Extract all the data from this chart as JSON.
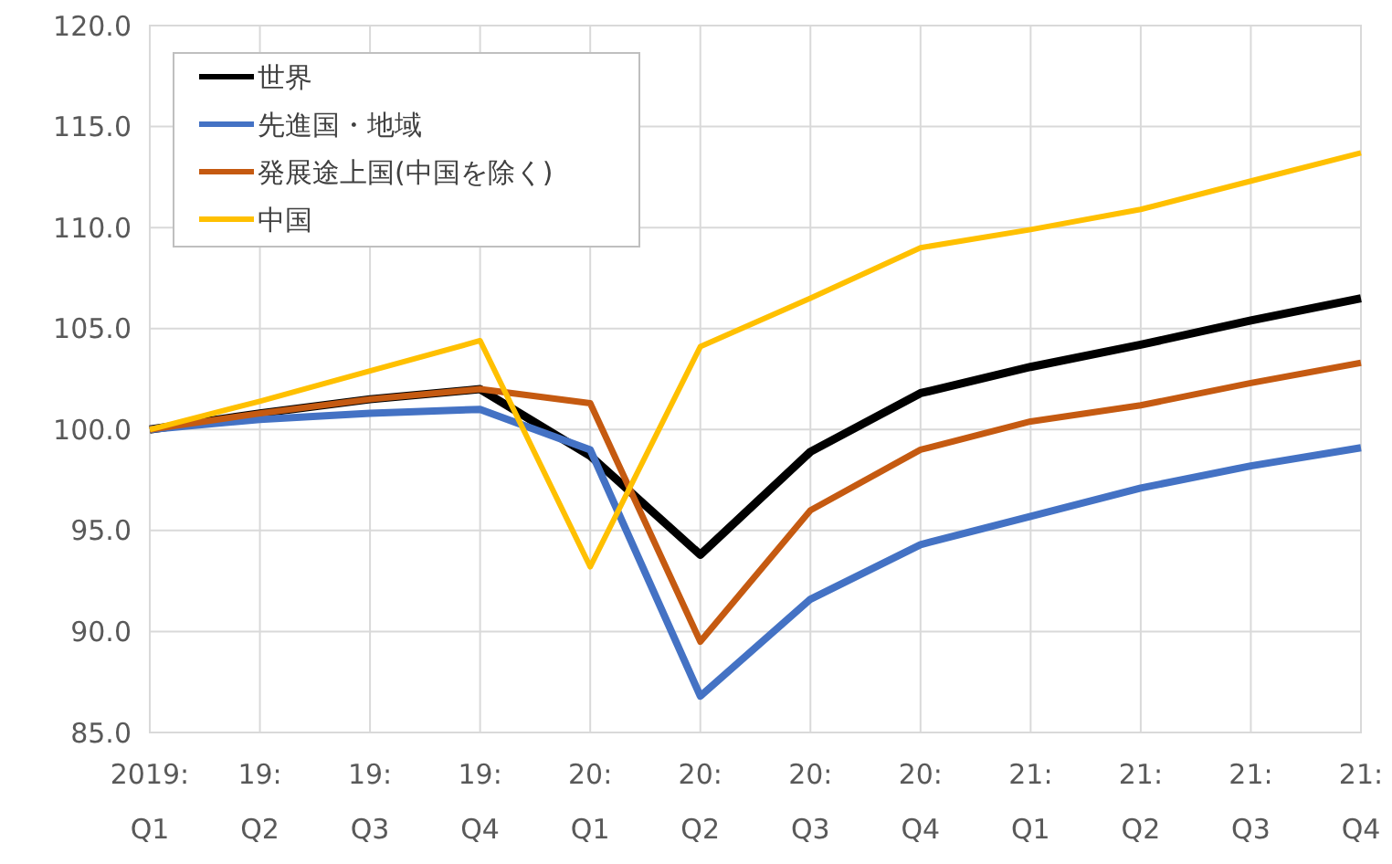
{
  "chart_data": {
    "type": "line",
    "categories": [
      "2019: Q1",
      "19: Q2",
      "19: Q3",
      "19: Q4",
      "20: Q1",
      "20: Q2",
      "20: Q3",
      "20: Q4",
      "21: Q1",
      "21: Q2",
      "21: Q3",
      "21: Q4"
    ],
    "series": [
      {
        "name": "世界",
        "color": "#000000",
        "values": [
          100,
          100.8,
          101.5,
          102.0,
          98.7,
          93.8,
          98.9,
          101.8,
          103.1,
          104.2,
          105.4,
          106.5
        ]
      },
      {
        "name": "先進国・地域",
        "color": "#4472c4",
        "values": [
          100,
          100.5,
          100.8,
          101.0,
          99.0,
          86.8,
          91.6,
          94.3,
          95.7,
          97.1,
          98.2,
          99.1
        ]
      },
      {
        "name": "発展途上国(中国を除く)",
        "color": "#c55a11",
        "values": [
          100,
          100.8,
          101.5,
          102.0,
          101.3,
          89.5,
          96.0,
          99.0,
          100.4,
          101.2,
          102.3,
          103.3
        ]
      },
      {
        "name": "中国",
        "color": "#ffc000",
        "values": [
          100,
          101.4,
          102.9,
          104.4,
          93.2,
          104.1,
          106.5,
          109.0,
          109.9,
          110.9,
          112.3,
          113.7
        ]
      }
    ],
    "ylim": [
      85,
      120
    ],
    "yticks": [
      {
        "value": 85,
        "label": "85.0"
      },
      {
        "value": 90,
        "label": "90.0"
      },
      {
        "value": 95,
        "label": "95.0"
      },
      {
        "value": 100,
        "label": "100.0"
      },
      {
        "value": 105,
        "label": "105.0"
      },
      {
        "value": 110,
        "label": "110.0"
      },
      {
        "value": 115,
        "label": "115.0"
      },
      {
        "value": 120,
        "label": "120.0"
      }
    ],
    "grid": true,
    "legend": "top left",
    "marker": "none",
    "line_style": "solid"
  }
}
